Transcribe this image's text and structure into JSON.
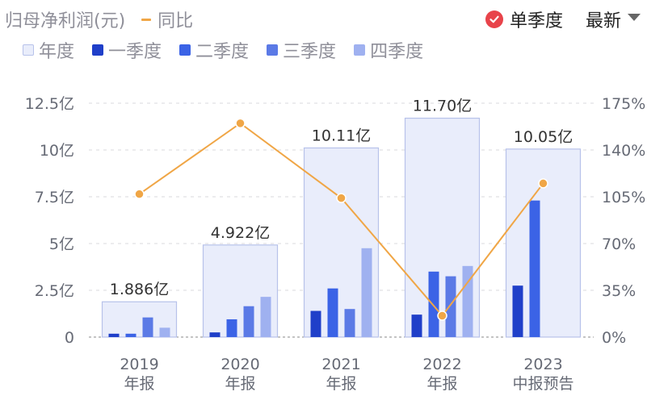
{
  "header": {
    "metric_label": "归母净利润(元)",
    "yoy_label": "同比",
    "single_quarter_label": "单季度",
    "sort_label": "最新"
  },
  "legend": [
    {
      "label": "年度",
      "color": "#e9edfb",
      "border": "#b7c2ea"
    },
    {
      "label": "一季度",
      "color": "#1f3fc9"
    },
    {
      "label": "二季度",
      "color": "#3b63e6"
    },
    {
      "label": "三季度",
      "color": "#5b7ae6"
    },
    {
      "label": "四季度",
      "color": "#9fb1f0"
    }
  ],
  "chart_data": {
    "type": "bar",
    "categories": [
      [
        "2019",
        "年报"
      ],
      [
        "2020",
        "年报"
      ],
      [
        "2021",
        "年报"
      ],
      [
        "2022",
        "年报"
      ],
      [
        "2023",
        "中报预告"
      ]
    ],
    "series": [
      {
        "name": "年度",
        "values": [
          1.886,
          4.922,
          10.11,
          11.7,
          10.05
        ],
        "labels": [
          "1.886亿",
          "4.922亿",
          "10.11亿",
          "11.70亿",
          "10.05亿"
        ]
      },
      {
        "name": "一季度",
        "values": [
          0.18,
          0.25,
          1.4,
          1.2,
          2.75
        ]
      },
      {
        "name": "二季度",
        "values": [
          0.18,
          0.95,
          2.6,
          3.5,
          7.3
        ]
      },
      {
        "name": "三季度",
        "values": [
          1.05,
          1.65,
          1.5,
          3.25,
          null
        ]
      },
      {
        "name": "四季度",
        "values": [
          0.5,
          2.15,
          4.75,
          3.8,
          null
        ]
      },
      {
        "name": "同比",
        "type": "line",
        "axis": "right",
        "values": [
          107,
          160,
          104,
          16,
          115
        ]
      }
    ],
    "y_left": {
      "ticks": [
        "0",
        "2.5亿",
        "5亿",
        "7.5亿",
        "10亿",
        "12.5亿"
      ],
      "min": 0,
      "max": 12.5
    },
    "y_right": {
      "ticks": [
        "0%",
        "35%",
        "70%",
        "105%",
        "140%",
        "175%"
      ],
      "min": 0,
      "max": 175
    },
    "grid": true,
    "colors": {
      "annual_fill": "#e9edfb",
      "annual_border": "#b7c2ea",
      "q1": "#1f3fc9",
      "q2": "#3b63e6",
      "q3": "#5b7ae6",
      "q4": "#9fb1f0",
      "line": "#f0a646"
    }
  }
}
